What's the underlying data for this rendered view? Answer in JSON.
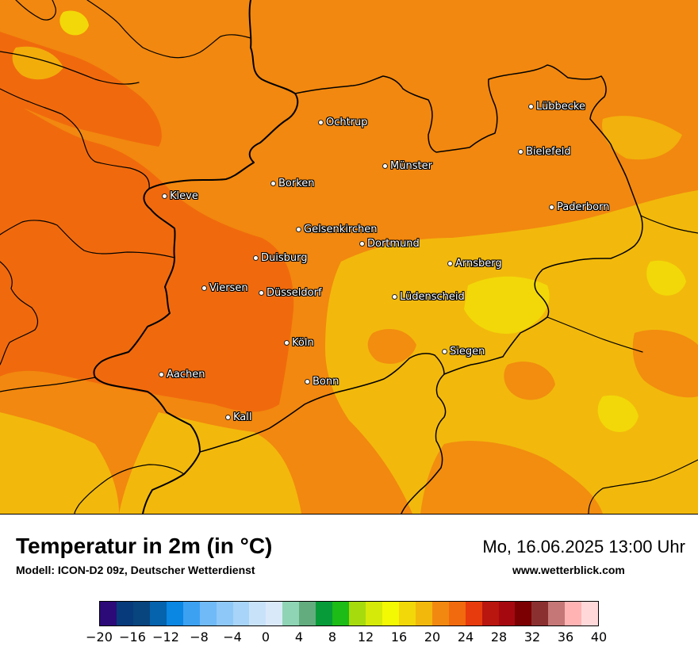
{
  "title": "Temperatur in 2m (in °C)",
  "subtitle": "Modell: ICON-D2 09z, Deutscher Wetterdienst",
  "datetime": "Mo, 16.06.2025 13:00 Uhr",
  "website": "www.wetterblick.com",
  "cities": [
    {
      "id": "luebbecke",
      "name": "Lübbecke"
    },
    {
      "id": "ochtrup",
      "name": "Ochtrup"
    },
    {
      "id": "bielefeld",
      "name": "Bielefeld"
    },
    {
      "id": "muenster",
      "name": "Münster"
    },
    {
      "id": "borken",
      "name": "Borken"
    },
    {
      "id": "kleve",
      "name": "Kleve"
    },
    {
      "id": "paderborn",
      "name": "Paderborn"
    },
    {
      "id": "gelsenkirchen",
      "name": "Gelsenkirchen"
    },
    {
      "id": "dortmund",
      "name": "Dortmund"
    },
    {
      "id": "duisburg",
      "name": "Duisburg"
    },
    {
      "id": "arnsberg",
      "name": "Arnsberg"
    },
    {
      "id": "viersen",
      "name": "Viersen"
    },
    {
      "id": "duesseldorf",
      "name": "Düsseldorf"
    },
    {
      "id": "luedenscheid",
      "name": "Lüdenscheid"
    },
    {
      "id": "koeln",
      "name": "Köln"
    },
    {
      "id": "siegen",
      "name": "Siegen"
    },
    {
      "id": "aachen",
      "name": "Aachen"
    },
    {
      "id": "bonn",
      "name": "Bonn"
    },
    {
      "id": "kall",
      "name": "Kall"
    }
  ],
  "scale": {
    "colors": [
      "#2c0a78",
      "#073a7a",
      "#08447e",
      "#0562ad",
      "#0a86e3",
      "#3ca1f1",
      "#70baf7",
      "#8ec8f8",
      "#a8d4f9",
      "#c8e2fa",
      "#dae9fa",
      "#8fd4b4",
      "#62ac7e",
      "#079c39",
      "#1dbc17",
      "#a6db0e",
      "#d5ea08",
      "#f2f903",
      "#f2d808",
      "#f2b90c",
      "#f28810",
      "#f26a0e",
      "#e83b0d",
      "#b8160e",
      "#a5090f",
      "#7b0001",
      "#8b3031",
      "#c47776",
      "#ffb3b3",
      "#ffd9d9"
    ],
    "ticks": [
      "−20",
      "−16",
      "−12",
      "−8",
      "−4",
      "0",
      "4",
      "8",
      "12",
      "16",
      "20",
      "24",
      "28",
      "32",
      "36",
      "40"
    ]
  }
}
